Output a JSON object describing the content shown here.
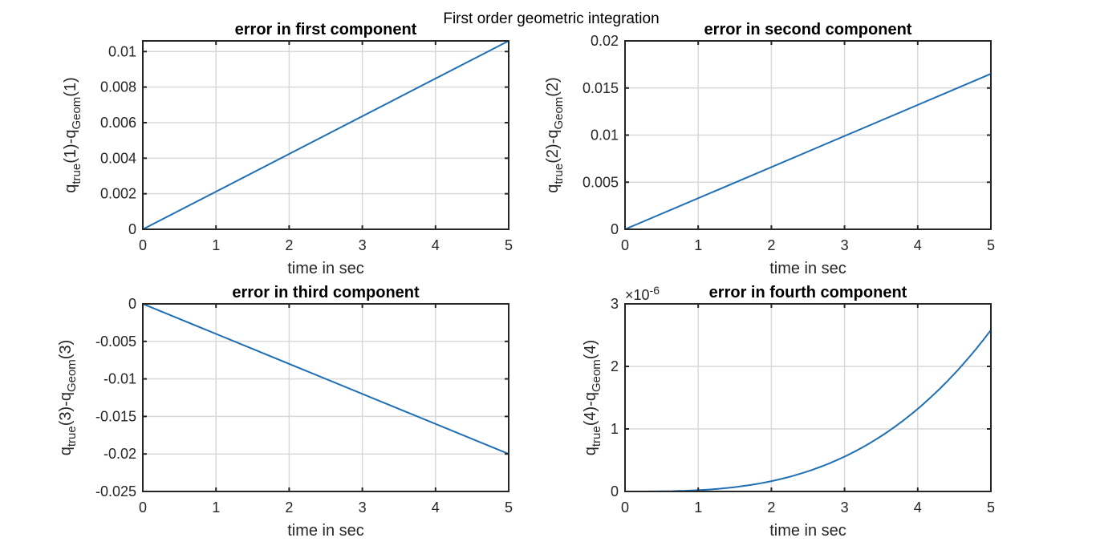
{
  "figure": {
    "suptitle": "First order geometric integration",
    "colors": {
      "series": "#1f6fb5",
      "grid": "#d9d9d9",
      "axes": "#262626"
    }
  },
  "chart_data": [
    {
      "type": "line",
      "title": "error in first component",
      "xlabel": "time in sec",
      "ylabel": {
        "base1": "q",
        "sub1": "true",
        "mid": "(1)-q",
        "sub2": "Geom",
        "end": "(1)"
      },
      "xlim": [
        0,
        5
      ],
      "ylim": [
        0,
        0.0106
      ],
      "xticks": [
        0,
        1,
        2,
        3,
        4,
        5
      ],
      "xtick_labels": [
        "0",
        "1",
        "2",
        "3",
        "4",
        "5"
      ],
      "yticks": [
        0,
        0.002,
        0.004,
        0.006,
        0.008,
        0.01
      ],
      "ytick_labels": [
        "0",
        "0.002",
        "0.004",
        "0.006",
        "0.008",
        "0.01"
      ],
      "exponent_label": "",
      "grid": true,
      "series": [
        {
          "shape": "linear",
          "x": [
            0,
            5
          ],
          "y": [
            0,
            0.0106
          ]
        }
      ]
    },
    {
      "type": "line",
      "title": "error in second component",
      "xlabel": "time in sec",
      "ylabel": {
        "base1": "q",
        "sub1": "true",
        "mid": "(2)-q",
        "sub2": "Geom",
        "end": "(2)"
      },
      "xlim": [
        0,
        5
      ],
      "ylim": [
        0,
        0.02
      ],
      "xticks": [
        0,
        1,
        2,
        3,
        4,
        5
      ],
      "xtick_labels": [
        "0",
        "1",
        "2",
        "3",
        "4",
        "5"
      ],
      "yticks": [
        0,
        0.005,
        0.01,
        0.015,
        0.02
      ],
      "ytick_labels": [
        "0",
        "0.005",
        "0.01",
        "0.015",
        "0.02"
      ],
      "exponent_label": "",
      "grid": true,
      "series": [
        {
          "shape": "linear",
          "x": [
            0,
            5
          ],
          "y": [
            0,
            0.0165
          ]
        }
      ]
    },
    {
      "type": "line",
      "title": "error in third component",
      "xlabel": "time in sec",
      "ylabel": {
        "base1": "q",
        "sub1": "true",
        "mid": "(3)-q",
        "sub2": "Geom",
        "end": "(3)"
      },
      "xlim": [
        0,
        5
      ],
      "ylim": [
        -0.025,
        0
      ],
      "xticks": [
        0,
        1,
        2,
        3,
        4,
        5
      ],
      "xtick_labels": [
        "0",
        "1",
        "2",
        "3",
        "4",
        "5"
      ],
      "yticks": [
        -0.025,
        -0.02,
        -0.015,
        -0.01,
        -0.005,
        0
      ],
      "ytick_labels": [
        "-0.025",
        "-0.02",
        "-0.015",
        "-0.01",
        "-0.005",
        "0"
      ],
      "exponent_label": "",
      "grid": true,
      "series": [
        {
          "shape": "linear",
          "x": [
            0,
            5
          ],
          "y": [
            0,
            -0.02
          ]
        }
      ]
    },
    {
      "type": "line",
      "title": "error in fourth component",
      "xlabel": "time in sec",
      "ylabel": {
        "base1": "q",
        "sub1": "true",
        "mid": "(4)-q",
        "sub2": "Geom",
        "end": "(4)"
      },
      "xlim": [
        0,
        5
      ],
      "ylim": [
        0,
        3
      ],
      "xticks": [
        0,
        1,
        2,
        3,
        4,
        5
      ],
      "xtick_labels": [
        "0",
        "1",
        "2",
        "3",
        "4",
        "5"
      ],
      "yticks": [
        0,
        1,
        2,
        3
      ],
      "ytick_labels": [
        "0",
        "1",
        "2",
        "3"
      ],
      "exponent_label": {
        "base": "×10",
        "exp": "-6"
      },
      "grid": true,
      "series": [
        {
          "shape": "curve",
          "x": [
            0,
            1,
            2,
            3,
            4,
            5
          ],
          "y": [
            0,
            0.02,
            0.17,
            0.56,
            1.32,
            2.58
          ]
        }
      ]
    }
  ]
}
